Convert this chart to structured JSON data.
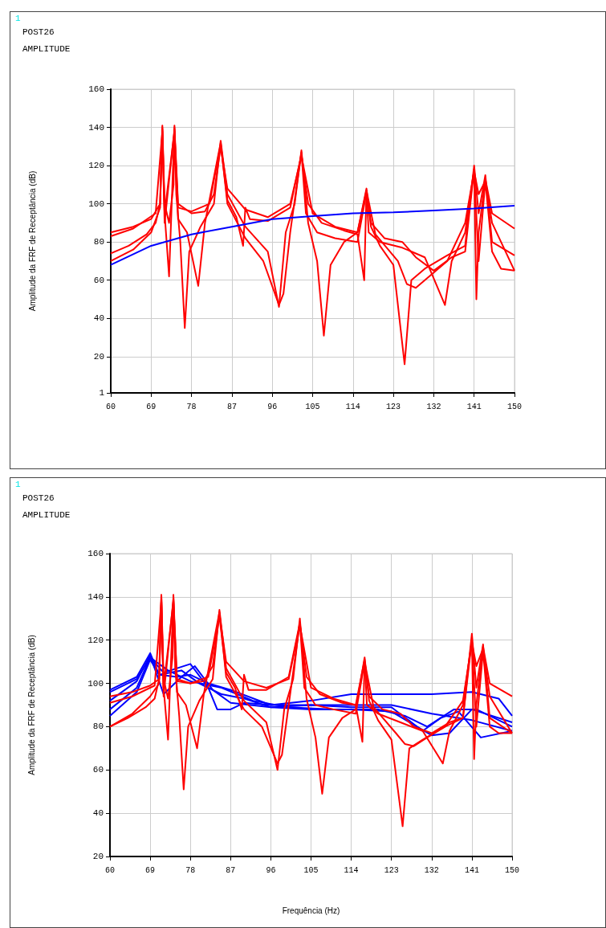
{
  "chart_data": [
    {
      "type": "line",
      "title": "POST26",
      "subtitle": "AMPLITUDE",
      "annotations": [
        "1"
      ],
      "ylabel": "Amplitude da FRF de Receptância (dB)",
      "xlim": [
        60,
        150
      ],
      "xticks": [
        60,
        69,
        78,
        87,
        96,
        105,
        114,
        123,
        132,
        141,
        150
      ],
      "ylim": [
        1,
        160
      ],
      "yticks": [
        1,
        20,
        40,
        60,
        80,
        100,
        120,
        140,
        160
      ],
      "grid": true,
      "marker": "none",
      "line_style": "solid",
      "series": [
        {
          "color": "#ff0000",
          "x": [
            60,
            64,
            68,
            70,
            71,
            71.5,
            72,
            73,
            74,
            74.2,
            74.6,
            75.5,
            76.5,
            77.5,
            80,
            83,
            84.5,
            86,
            90,
            95,
            97.5,
            99,
            101,
            102.5,
            104,
            106,
            107.5,
            109,
            112,
            115,
            117,
            118,
            120,
            123,
            125.5,
            127,
            130,
            135,
            139,
            141,
            142,
            143.5,
            145,
            150
          ],
          "values": [
            74,
            78,
            84,
            90,
            100,
            141,
            100,
            90,
            110,
            141,
            105,
            80,
            35,
            75,
            88,
            100,
            133,
            105,
            88,
            75,
            46,
            85,
            100,
            128,
            90,
            70,
            31,
            68,
            80,
            85,
            108,
            88,
            78,
            68,
            16,
            60,
            66,
            73,
            78,
            120,
            95,
            115,
            80,
            73
          ]
        },
        {
          "color": "#ff0000",
          "x": [
            60,
            65,
            69,
            71,
            71.5,
            72,
            73,
            74.2,
            75,
            78,
            81,
            83,
            84.5,
            86,
            90,
            95,
            100,
            102.5,
            105,
            110,
            115,
            117,
            117.5,
            120,
            125,
            130,
            134.5,
            136,
            139,
            141,
            141.5,
            142,
            143.5,
            145,
            150
          ],
          "values": [
            85,
            88,
            92,
            100,
            140,
            95,
            62,
            140,
            100,
            95,
            96,
            105,
            130,
            108,
            97,
            93,
            100,
            125,
            95,
            88,
            85,
            107,
            85,
            80,
            77,
            72,
            47,
            70,
            85,
            118,
            50,
            85,
            113,
            95,
            87
          ]
        },
        {
          "color": "#ff0000",
          "x": [
            60,
            65,
            70,
            71.5,
            72,
            74.2,
            75,
            78,
            82,
            84.5,
            86,
            88,
            89.5,
            90,
            91,
            95,
            100,
            102.5,
            104,
            107,
            112,
            115,
            116.5,
            117,
            119,
            124,
            126,
            128,
            131,
            135,
            139,
            141,
            142,
            143.5,
            145,
            150
          ],
          "values": [
            83,
            87,
            95,
            138,
            95,
            138,
            98,
            96,
            100,
            131,
            102,
            93,
            78,
            98,
            92,
            91,
            98,
            126,
            100,
            90,
            86,
            84,
            60,
            107,
            84,
            70,
            58,
            56,
            62,
            70,
            90,
            117,
            105,
            112,
            90,
            65
          ]
        },
        {
          "color": "#ff0000",
          "x": [
            60,
            65,
            69,
            71,
            71.5,
            72,
            74.2,
            75,
            77,
            79.5,
            81,
            84.5,
            86,
            90,
            94,
            97.5,
            98.5,
            100,
            102.5,
            103.5,
            106,
            110,
            115,
            117,
            118,
            121,
            125,
            128,
            132,
            136,
            139,
            141,
            142,
            143.5,
            145,
            147,
            150
          ],
          "values": [
            70,
            76,
            85,
            98,
            139,
            90,
            139,
            92,
            85,
            57,
            90,
            132,
            100,
            82,
            70,
            47,
            53,
            85,
            127,
            95,
            85,
            82,
            80,
            106,
            90,
            82,
            80,
            72,
            65,
            72,
            75,
            118,
            70,
            112,
            75,
            66,
            65
          ]
        },
        {
          "color": "#0000ff",
          "x": [
            60,
            69,
            78,
            87,
            96,
            105,
            114,
            123,
            132,
            141,
            150
          ],
          "values": [
            68,
            78,
            84,
            88,
            92,
            93.5,
            95,
            95.5,
            96.5,
            97.5,
            99
          ]
        }
      ]
    },
    {
      "type": "line",
      "title": "POST26",
      "subtitle": "AMPLITUDE",
      "annotations": [
        "1"
      ],
      "xlabel": "Frequência (Hz)",
      "ylabel": "Amplitude da FRF de Receptância (dB)",
      "xlim": [
        60,
        150
      ],
      "xticks": [
        60,
        69,
        78,
        87,
        96,
        105,
        114,
        123,
        132,
        141,
        150
      ],
      "ylim": [
        20,
        160
      ],
      "yticks": [
        20,
        40,
        60,
        80,
        100,
        120,
        140,
        160
      ],
      "grid": true,
      "marker": "none",
      "line_style": "solid",
      "series": [
        {
          "color": "#0000ff",
          "x": [
            60,
            66,
            69,
            71,
            75,
            78,
            82,
            87,
            96,
            105,
            114,
            123,
            132,
            141,
            150
          ],
          "values": [
            97,
            103,
            114,
            104,
            103,
            104,
            100,
            97,
            90,
            90,
            90,
            90,
            86,
            83,
            78
          ]
        },
        {
          "color": "#0000ff",
          "x": [
            60,
            66,
            69,
            72,
            76,
            79,
            83,
            87,
            96,
            105,
            114,
            123,
            132,
            136,
            141,
            150
          ],
          "values": [
            92,
            101,
            113,
            95,
            103,
            108,
            97,
            91,
            89,
            88,
            88,
            87,
            76,
            77,
            88,
            82
          ]
        },
        {
          "color": "#0000ff",
          "x": [
            60,
            66,
            69,
            72,
            78,
            82,
            84,
            87,
            90,
            96,
            105,
            114,
            123,
            132,
            141,
            147,
            150
          ],
          "values": [
            88,
            98,
            112,
            105,
            109,
            98,
            88,
            88,
            91,
            90,
            92,
            95,
            95,
            95,
            96,
            93,
            85
          ]
        },
        {
          "color": "#0000ff",
          "x": [
            60,
            66,
            69,
            71,
            76,
            80,
            85,
            90,
            96,
            105,
            114,
            123,
            130,
            134,
            138,
            143,
            150
          ],
          "values": [
            85,
            96,
            111,
            104,
            106,
            100,
            95,
            93,
            89,
            90,
            89,
            89,
            78,
            84,
            87,
            75,
            78
          ]
        },
        {
          "color": "#0000ff",
          "x": [
            60,
            66,
            69,
            73,
            78,
            85,
            92,
            100,
            110,
            120,
            126,
            131,
            137,
            142,
            150
          ],
          "values": [
            96,
            102,
            112,
            106,
            101,
            98,
            92,
            89,
            88,
            88,
            85,
            80,
            88,
            88,
            80
          ]
        },
        {
          "color": "#ff0000",
          "x": [
            60,
            64,
            68,
            70,
            71,
            71.5,
            72,
            73,
            74,
            74.2,
            74.6,
            75.5,
            76.5,
            77.5,
            80,
            83,
            84.5,
            86,
            90,
            95,
            97.5,
            99,
            101,
            102.5,
            104,
            106,
            107.5,
            109,
            112,
            115,
            117,
            118,
            120,
            123,
            125.5,
            127,
            130,
            135,
            139,
            141,
            142,
            143.5,
            145,
            150
          ],
          "values": [
            80,
            84,
            89,
            93,
            102,
            141,
            102,
            93,
            112,
            141,
            107,
            85,
            51,
            80,
            92,
            102,
            134,
            107,
            92,
            82,
            60,
            88,
            102,
            130,
            93,
            75,
            49,
            75,
            84,
            88,
            112,
            92,
            83,
            74,
            34,
            70,
            74,
            80,
            84,
            123,
            98,
            118,
            84,
            77
          ]
        },
        {
          "color": "#ff0000",
          "x": [
            60,
            65,
            69,
            71,
            71.5,
            72,
            73,
            74.2,
            75,
            78,
            81,
            83,
            84.5,
            86,
            90,
            95,
            100,
            102.5,
            105,
            110,
            115,
            117,
            117.5,
            120,
            125,
            130,
            134.5,
            136,
            139,
            141,
            141.5,
            142,
            143.5,
            145,
            150
          ],
          "values": [
            94,
            96,
            99,
            102,
            140,
            98,
            74,
            140,
            102,
            100,
            101,
            108,
            132,
            110,
            101,
            98,
            102,
            127,
            98,
            93,
            90,
            111,
            90,
            86,
            82,
            78,
            63,
            78,
            90,
            120,
            65,
            90,
            117,
            100,
            94
          ]
        },
        {
          "color": "#ff0000",
          "x": [
            60,
            65,
            70,
            71.5,
            72,
            74.2,
            75,
            78,
            82,
            84.5,
            86,
            88,
            89.5,
            90,
            91,
            95,
            100,
            102.5,
            104,
            107,
            112,
            115,
            116.5,
            117,
            119,
            124,
            126,
            128,
            131,
            135,
            139,
            141,
            142,
            143.5,
            145,
            150
          ],
          "values": [
            91,
            94,
            99,
            138,
            98,
            138,
            101,
            100,
            103,
            131,
            105,
            98,
            88,
            104,
            97,
            97,
            103,
            128,
            103,
            95,
            91,
            90,
            73,
            110,
            89,
            77,
            72,
            71,
            75,
            80,
            92,
            119,
            108,
            116,
            94,
            77
          ]
        },
        {
          "color": "#ff0000",
          "x": [
            60,
            65,
            69,
            71,
            71.5,
            72,
            74.2,
            75,
            77,
            79.5,
            81,
            84.5,
            86,
            90,
            94,
            97.5,
            98.5,
            100,
            102.5,
            103.5,
            106,
            110,
            115,
            117,
            118,
            121,
            125,
            128,
            132,
            136,
            139,
            141,
            142,
            143.5,
            145,
            147,
            150
          ],
          "values": [
            80,
            86,
            94,
            100,
            139,
            94,
            139,
            96,
            90,
            70,
            95,
            133,
            103,
            88,
            80,
            63,
            67,
            90,
            128,
            98,
            90,
            88,
            86,
            110,
            94,
            88,
            86,
            80,
            77,
            82,
            84,
            120,
            80,
            115,
            80,
            77,
            77
          ]
        }
      ]
    }
  ]
}
